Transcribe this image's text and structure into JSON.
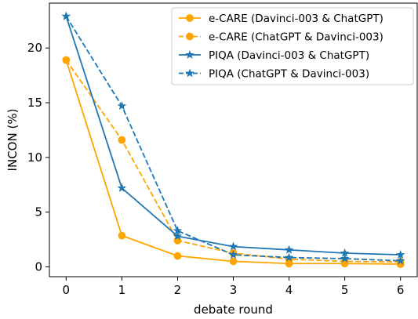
{
  "chart_data": {
    "type": "line",
    "xlabel": "debate round",
    "ylabel": "INCON (%)",
    "x": [
      0,
      1,
      2,
      3,
      4,
      5,
      6
    ],
    "xlim": [
      -0.3,
      6.3
    ],
    "ylim": [
      -0.9,
      24.1
    ],
    "xticks": [
      "0",
      "1",
      "2",
      "3",
      "4",
      "5",
      "6"
    ],
    "yticks": [
      "0",
      "5",
      "10",
      "15",
      "20"
    ],
    "grid": false,
    "legend_position": "top-right",
    "series": [
      {
        "name": "e-CARE (Davinci-003 & ChatGPT)",
        "color": "#FFA500",
        "linestyle": "solid",
        "marker": "circle",
        "values": [
          18.9,
          2.85,
          1.0,
          0.5,
          0.3,
          0.3,
          0.25
        ]
      },
      {
        "name": "e-CARE (ChatGPT & Davinci-003)",
        "color": "#FFA500",
        "linestyle": "dashed",
        "marker": "circle",
        "values": [
          18.9,
          11.6,
          2.4,
          1.25,
          0.7,
          0.5,
          0.45
        ]
      },
      {
        "name": "PIQA (Davinci-003 & ChatGPT)",
        "color": "#1F77B4",
        "linestyle": "solid",
        "marker": "star",
        "values": [
          22.9,
          7.2,
          2.8,
          1.85,
          1.55,
          1.25,
          1.1
        ]
      },
      {
        "name": "PIQA (ChatGPT & Davinci-003)",
        "color": "#1F77B4",
        "linestyle": "dashed",
        "marker": "star",
        "values": [
          22.9,
          14.7,
          3.3,
          1.1,
          0.85,
          0.75,
          0.55
        ]
      }
    ]
  }
}
